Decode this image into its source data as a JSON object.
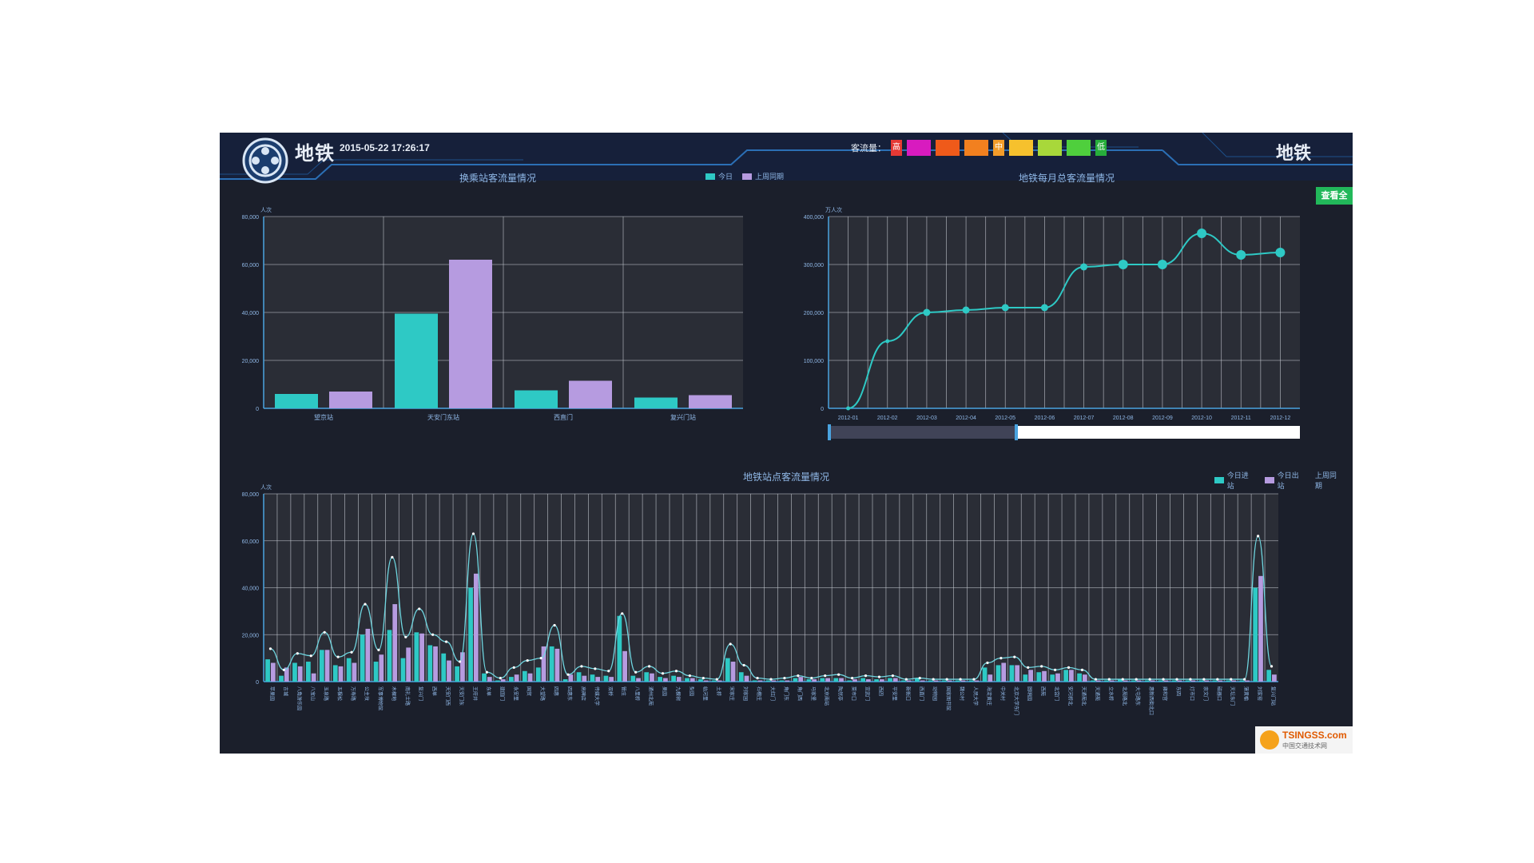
{
  "header": {
    "brand_left": "地铁",
    "datetime": "2015-05-22 17:26:17",
    "brand_right": "地铁",
    "flow_legend_label": "客流量：",
    "flow_levels": [
      {
        "label": "高",
        "color": "#e53935",
        "small": true
      },
      {
        "label": "",
        "color": "#d81bbf",
        "small": false
      },
      {
        "label": "",
        "color": "#ef5a1a",
        "small": false
      },
      {
        "label": "",
        "color": "#f2801f",
        "small": false
      },
      {
        "label": "中",
        "color": "#f39c2a",
        "small": true
      },
      {
        "label": "",
        "color": "#f6c12d",
        "small": false
      },
      {
        "label": "",
        "color": "#a8d83a",
        "small": false
      },
      {
        "label": "",
        "color": "#4fcf3d",
        "small": false
      },
      {
        "label": "低",
        "color": "#27ae3b",
        "small": true
      }
    ]
  },
  "side_tag": "查看全",
  "watermark": {
    "text": "TSINGSS.com",
    "sub": "中国交通技术网"
  },
  "colors": {
    "teal": "#2ec9c5",
    "lilac": "#b69be0",
    "line": "#2ec9c5",
    "grid": "#c8ccd4",
    "plot_bg": "#2a2d36"
  },
  "chart_data": [
    {
      "id": "top-left",
      "type": "bar",
      "title": "换乘站客流量情况",
      "ylabel": "人次",
      "ylim": [
        0,
        80000
      ],
      "yticks": [
        "0",
        "20,000",
        "40,000",
        "60,000",
        "80,000"
      ],
      "categories": [
        "望京站",
        "天安门东站",
        "西直门",
        "复兴门站"
      ],
      "series": [
        {
          "name": "今日",
          "values": [
            6000,
            39500,
            7500,
            4500
          ]
        },
        {
          "name": "上周同期",
          "values": [
            7000,
            62000,
            11500,
            5500
          ]
        }
      ],
      "legend": "top-right"
    },
    {
      "id": "top-right",
      "type": "line",
      "title": "地铁每月总客流量情况",
      "ylabel": "万人次",
      "ylim": [
        0,
        400000
      ],
      "yticks": [
        "0",
        "100,000",
        "200,000",
        "300,000",
        "400,000"
      ],
      "x": [
        "2012-01",
        "2012-02",
        "2012-03",
        "2012-04",
        "2012-05",
        "2012-06",
        "2012-07",
        "2012-08",
        "2012-09",
        "2012-10",
        "2012-11",
        "2012-12"
      ],
      "values": [
        0,
        140000,
        200000,
        205000,
        210000,
        210000,
        295000,
        300000,
        300000,
        365000,
        320000,
        325000
      ],
      "marker_emphasis": [
        false,
        false,
        true,
        true,
        true,
        true,
        true,
        true,
        true,
        true,
        true,
        true
      ]
    },
    {
      "id": "bottom",
      "type": "bar",
      "title": "地铁站点客流量情况",
      "ylabel": "人次",
      "ylim": [
        0,
        80000
      ],
      "yticks": [
        "0",
        "20,000",
        "40,000",
        "60,000",
        "80,000"
      ],
      "categories": [
        "苹果园",
        "古城",
        "八角游乐园",
        "八宝山",
        "玉泉路",
        "五棵松",
        "万寿路",
        "公主坟",
        "军事博物馆",
        "木樨地",
        "南礼士路",
        "复兴门",
        "西单",
        "天安门西",
        "天安门东",
        "王府井",
        "东单",
        "建国门",
        "永安里",
        "国贸",
        "大望路",
        "四惠",
        "四惠东",
        "高碑店",
        "传媒大学",
        "双桥",
        "管庄",
        "八里桥",
        "通州北苑",
        "果园",
        "九棵树",
        "梨园",
        "临河里",
        "土桥",
        "宋家庄",
        "刘家园",
        "石榴庄",
        "大红门",
        "角门东",
        "角门西",
        "马家堡",
        "北京南站",
        "陶然亭",
        "菜市口",
        "宣武门",
        "西四",
        "平安里",
        "新街口",
        "西直门",
        "动物园",
        "国家图书馆",
        "魏公村",
        "人民大学",
        "海淀黄庄",
        "中关村",
        "北京大学东门",
        "圆明园",
        "西苑",
        "北宫门",
        "安河桥北",
        "天通苑北",
        "天通苑",
        "立水桥",
        "北苑路北",
        "大屯路东",
        "惠新西街北口",
        "雍和宫",
        "东四",
        "灯市口",
        "崇文门",
        "磁器口",
        "天坛东门",
        "蒲黄榆",
        "刘家窑",
        "复兴门站"
      ],
      "series": [
        {
          "name": "今日进站",
          "values": [
            9500,
            2500,
            8000,
            8500,
            13500,
            7000,
            10000,
            20000,
            8500,
            22000,
            10000,
            21000,
            15500,
            12000,
            6500,
            40000,
            3500,
            500,
            2000,
            4500,
            6000,
            15000,
            1000,
            4000,
            3000,
            2500,
            28000,
            2500,
            4000,
            2000,
            2500,
            1500,
            1000,
            500,
            10000,
            4000,
            500,
            500,
            500,
            1500,
            1000,
            1500,
            1500,
            500,
            1500,
            1000,
            1500,
            500,
            1500,
            500,
            500,
            500,
            500,
            6000,
            7000,
            7000,
            3000,
            4000,
            3000,
            5000,
            3500,
            500,
            500,
            1000,
            500,
            500,
            500,
            500,
            500,
            500,
            500,
            500,
            500,
            40000,
            5000
          ]
        },
        {
          "name": "今日出站",
          "values": [
            8000,
            6000,
            6500,
            3500,
            13500,
            6500,
            8000,
            22500,
            11500,
            33000,
            14500,
            20500,
            15000,
            9000,
            12500,
            46000,
            2000,
            1000,
            3000,
            3500,
            15000,
            14000,
            3000,
            2500,
            2000,
            2000,
            13000,
            1500,
            3500,
            1500,
            2000,
            1500,
            500,
            500,
            8500,
            2500,
            500,
            500,
            500,
            2000,
            1000,
            1500,
            1500,
            1000,
            1000,
            1000,
            1500,
            500,
            500,
            500,
            500,
            500,
            500,
            3000,
            8000,
            7000,
            5000,
            4500,
            3500,
            5000,
            3000,
            500,
            500,
            500,
            500,
            500,
            500,
            500,
            500,
            500,
            500,
            500,
            500,
            45000,
            3000
          ]
        },
        {
          "name": "上周同期",
          "values": [
            14000,
            5000,
            12000,
            11000,
            21000,
            10500,
            12500,
            33000,
            13500,
            53000,
            19000,
            31000,
            20000,
            17000,
            8500,
            63000,
            4000,
            1500,
            6000,
            9000,
            10000,
            24000,
            3000,
            6500,
            5500,
            4500,
            29000,
            4000,
            6500,
            3500,
            4500,
            2500,
            1500,
            1000,
            16000,
            7000,
            1500,
            1000,
            1500,
            2500,
            1500,
            2500,
            3000,
            1500,
            2500,
            2000,
            2500,
            1000,
            1500,
            1000,
            1000,
            1000,
            1000,
            8000,
            10000,
            10500,
            6000,
            6500,
            5000,
            6000,
            5000,
            1000,
            1000,
            1000,
            1000,
            1000,
            1000,
            1000,
            1000,
            1000,
            1000,
            1000,
            1000,
            62000,
            6500
          ]
        }
      ],
      "legend": "top-right"
    }
  ]
}
